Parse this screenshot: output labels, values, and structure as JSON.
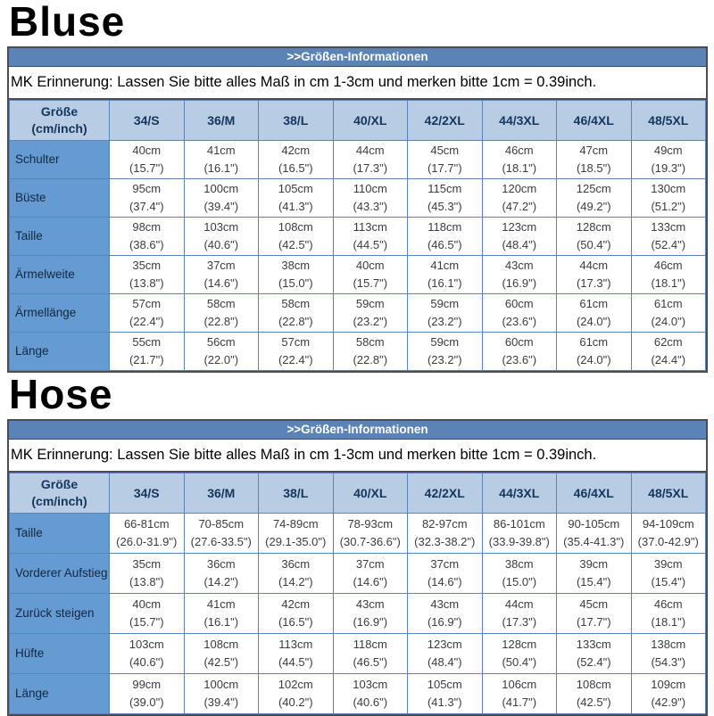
{
  "colors": {
    "band_bg": "#5b83b6",
    "band_text": "#ffffff",
    "header_bg": "#b8cce4",
    "header_text": "#14365c",
    "label_bg": "#639bd2",
    "label_text": "#152740",
    "grid_border": "#5b83b6",
    "outer_border": "#4d4d4d",
    "cell_text": "#3c3c3c",
    "title_text": "#000000"
  },
  "sections": [
    {
      "id": "bluse",
      "title": "Bluse",
      "band_title": ">>Größen-Informationen",
      "reminder": "MK Erinnerung: Lassen Sie bitte alles Maß in cm 1-3cm und merken bitte 1cm = 0.39inch.",
      "corner_line1": "Größe",
      "corner_line2": "(cm/inch)",
      "columns": [
        "34/S",
        "36/M",
        "38/L",
        "40/XL",
        "42/2XL",
        "44/3XL",
        "46/4XL",
        "48/5XL"
      ],
      "rows": [
        {
          "label": "Schulter",
          "cells": [
            {
              "cm": "40cm",
              "inch": "(15.7\")"
            },
            {
              "cm": "41cm",
              "inch": "(16.1\")"
            },
            {
              "cm": "42cm",
              "inch": "(16.5\")"
            },
            {
              "cm": "44cm",
              "inch": "(17.3\")"
            },
            {
              "cm": "45cm",
              "inch": "(17.7\")"
            },
            {
              "cm": "46cm",
              "inch": "(18.1\")"
            },
            {
              "cm": "47cm",
              "inch": "(18.5\")"
            },
            {
              "cm": "49cm",
              "inch": "(19.3\")"
            }
          ]
        },
        {
          "label": "Büste",
          "cells": [
            {
              "cm": "95cm",
              "inch": "(37.4\")"
            },
            {
              "cm": "100cm",
              "inch": "(39.4\")"
            },
            {
              "cm": "105cm",
              "inch": "(41.3\")"
            },
            {
              "cm": "110cm",
              "inch": "(43.3\")"
            },
            {
              "cm": "115cm",
              "inch": "(45.3\")"
            },
            {
              "cm": "120cm",
              "inch": "(47.2\")"
            },
            {
              "cm": "125cm",
              "inch": "(49.2\")"
            },
            {
              "cm": "130cm",
              "inch": "(51.2\")"
            }
          ]
        },
        {
          "label": "Taille",
          "cells": [
            {
              "cm": "98cm",
              "inch": "(38.6\")"
            },
            {
              "cm": "103cm",
              "inch": "(40.6\")"
            },
            {
              "cm": "108cm",
              "inch": "(42.5\")"
            },
            {
              "cm": "113cm",
              "inch": "(44.5\")"
            },
            {
              "cm": "118cm",
              "inch": "(46.5\")"
            },
            {
              "cm": "123cm",
              "inch": "(48.4\")"
            },
            {
              "cm": "128cm",
              "inch": "(50.4\")"
            },
            {
              "cm": "133cm",
              "inch": "(52.4\")"
            }
          ]
        },
        {
          "label": "Ärmelweite",
          "cells": [
            {
              "cm": "35cm",
              "inch": "(13.8\")"
            },
            {
              "cm": "37cm",
              "inch": "(14.6\")"
            },
            {
              "cm": "38cm",
              "inch": "(15.0\")"
            },
            {
              "cm": "40cm",
              "inch": "(15.7\")"
            },
            {
              "cm": "41cm",
              "inch": "(16.1\")"
            },
            {
              "cm": "43cm",
              "inch": "(16.9\")"
            },
            {
              "cm": "44cm",
              "inch": "(17.3\")"
            },
            {
              "cm": "46cm",
              "inch": "(18.1\")"
            }
          ]
        },
        {
          "label": "Ärmellänge",
          "cells": [
            {
              "cm": "57cm",
              "inch": "(22.4\")"
            },
            {
              "cm": "58cm",
              "inch": "(22.8\")"
            },
            {
              "cm": "58cm",
              "inch": "(22.8\")"
            },
            {
              "cm": "59cm",
              "inch": "(23.2\")"
            },
            {
              "cm": "59cm",
              "inch": "(23.2\")"
            },
            {
              "cm": "60cm",
              "inch": "(23.6\")"
            },
            {
              "cm": "61cm",
              "inch": "(24.0\")"
            },
            {
              "cm": "61cm",
              "inch": "(24.0\")"
            }
          ]
        },
        {
          "label": "Länge",
          "cells": [
            {
              "cm": "55cm",
              "inch": "(21.7\")"
            },
            {
              "cm": "56cm",
              "inch": "(22.0\")"
            },
            {
              "cm": "57cm",
              "inch": "(22.4\")"
            },
            {
              "cm": "58cm",
              "inch": "(22.8\")"
            },
            {
              "cm": "59cm",
              "inch": "(23.2\")"
            },
            {
              "cm": "60cm",
              "inch": "(23.6\")"
            },
            {
              "cm": "61cm",
              "inch": "(24.0\")"
            },
            {
              "cm": "62cm",
              "inch": "(24.4\")"
            }
          ]
        }
      ]
    },
    {
      "id": "hose",
      "title": "Hose",
      "band_title": ">>Größen-Informationen",
      "reminder": "MK Erinnerung: Lassen Sie bitte alles Maß in cm 1-3cm und merken bitte 1cm = 0.39inch.",
      "corner_line1": "Größe",
      "corner_line2": "(cm/inch)",
      "columns": [
        "34/S",
        "36/M",
        "38/L",
        "40/XL",
        "42/2XL",
        "44/3XL",
        "46/4XL",
        "48/5XL"
      ],
      "rows": [
        {
          "label": "Taille",
          "cells": [
            {
              "cm": "66-81cm",
              "inch": "(26.0-31.9\")"
            },
            {
              "cm": "70-85cm",
              "inch": "(27.6-33.5\")"
            },
            {
              "cm": "74-89cm",
              "inch": "(29.1-35.0\")"
            },
            {
              "cm": "78-93cm",
              "inch": "(30.7-36.6\")"
            },
            {
              "cm": "82-97cm",
              "inch": "(32.3-38.2\")"
            },
            {
              "cm": "86-101cm",
              "inch": "(33.9-39.8\")"
            },
            {
              "cm": "90-105cm",
              "inch": "(35.4-41.3\")"
            },
            {
              "cm": "94-109cm",
              "inch": "(37.0-42.9\")"
            }
          ]
        },
        {
          "label": "Vorderer Aufstieg",
          "cells": [
            {
              "cm": "35cm",
              "inch": "(13.8\")"
            },
            {
              "cm": "36cm",
              "inch": "(14.2\")"
            },
            {
              "cm": "36cm",
              "inch": "(14.2\")"
            },
            {
              "cm": "37cm",
              "inch": "(14.6\")"
            },
            {
              "cm": "37cm",
              "inch": "(14.6\")"
            },
            {
              "cm": "38cm",
              "inch": "(15.0\")"
            },
            {
              "cm": "39cm",
              "inch": "(15.4\")"
            },
            {
              "cm": "39cm",
              "inch": "(15.4\")"
            }
          ]
        },
        {
          "label": "Zurück steigen",
          "cells": [
            {
              "cm": "40cm",
              "inch": "(15.7\")"
            },
            {
              "cm": "41cm",
              "inch": "(16.1\")"
            },
            {
              "cm": "42cm",
              "inch": "(16.5\")"
            },
            {
              "cm": "43cm",
              "inch": "(16.9\")"
            },
            {
              "cm": "43cm",
              "inch": "(16.9\")"
            },
            {
              "cm": "44cm",
              "inch": "(17.3\")"
            },
            {
              "cm": "45cm",
              "inch": "(17.7\")"
            },
            {
              "cm": "46cm",
              "inch": "(18.1\")"
            }
          ]
        },
        {
          "label": "Hüfte",
          "cells": [
            {
              "cm": "103cm",
              "inch": "(40.6\")"
            },
            {
              "cm": "108cm",
              "inch": "(42.5\")"
            },
            {
              "cm": "113cm",
              "inch": "(44.5\")"
            },
            {
              "cm": "118cm",
              "inch": "(46.5\")"
            },
            {
              "cm": "123cm",
              "inch": "(48.4\")"
            },
            {
              "cm": "128cm",
              "inch": "(50.4\")"
            },
            {
              "cm": "133cm",
              "inch": "(52.4\")"
            },
            {
              "cm": "138cm",
              "inch": "(54.3\")"
            }
          ]
        },
        {
          "label": "Länge",
          "cells": [
            {
              "cm": "99cm",
              "inch": "(39.0\")"
            },
            {
              "cm": "100cm",
              "inch": "(39.4\")"
            },
            {
              "cm": "102cm",
              "inch": "(40.2\")"
            },
            {
              "cm": "103cm",
              "inch": "(40.6\")"
            },
            {
              "cm": "105cm",
              "inch": "(41.3\")"
            },
            {
              "cm": "106cm",
              "inch": "(41.7\")"
            },
            {
              "cm": "108cm",
              "inch": "(42.5\")"
            },
            {
              "cm": "109cm",
              "inch": "(42.9\")"
            }
          ]
        }
      ]
    }
  ]
}
